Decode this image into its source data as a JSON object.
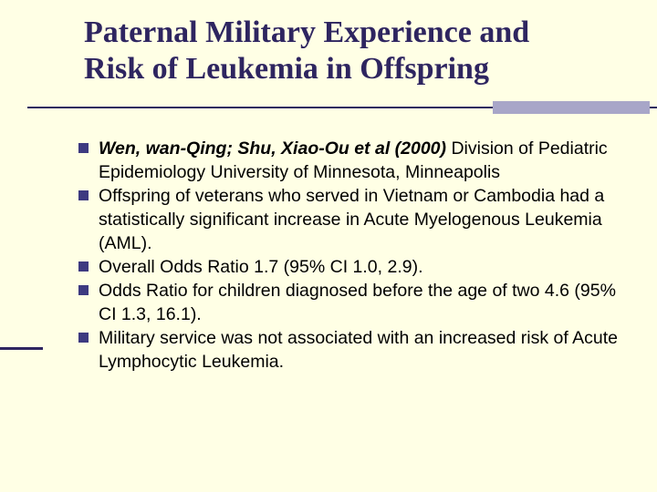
{
  "slide": {
    "title_line1": "Paternal Military Experience and",
    "title_line2": "Risk of Leukemia in Offspring",
    "bullets": [
      {
        "lead": "Wen, wan-Qing; Shu, Xiao-Ou et al (2000)",
        "text": " Division of Pediatric Epidemiology University of Minnesota, Minneapolis"
      },
      {
        "text": "Offspring of veterans who served in Vietnam or Cambodia had a statistically significant increase in Acute Myelogenous Leukemia (AML)."
      },
      {
        "text": "Overall Odds Ratio 1.7 (95% CI 1.0, 2.9)."
      },
      {
        "text": "Odds Ratio for children diagnosed before the age of two 4.6 (95% CI 1.3, 16.1)."
      },
      {
        "text": "Military service was not associated with an increased risk of Acute Lymphocytic Leukemia."
      }
    ]
  },
  "colors": {
    "background": "#FFFFE5",
    "title": "#2E2560",
    "bullet_marker": "#3D3A80",
    "accent_block": "#A8A6C8"
  }
}
